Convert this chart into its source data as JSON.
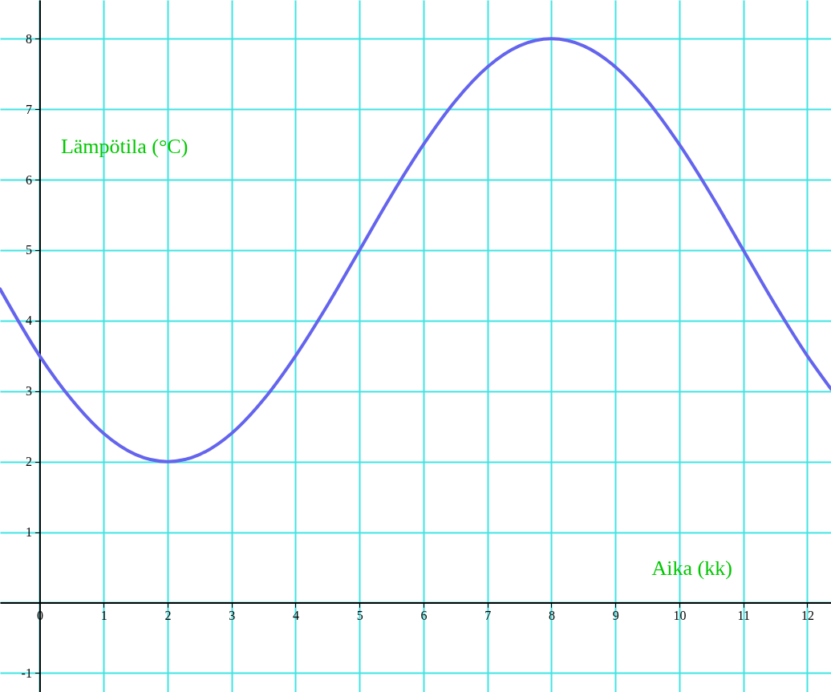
{
  "chart_data": {
    "type": "line",
    "xlabel": "Aika  (kk)",
    "ylabel": "Lämpötila  (°C)",
    "x": [
      -0.62,
      0,
      0.5,
      1,
      1.5,
      2,
      2.5,
      3,
      3.5,
      4,
      4.5,
      5,
      5.5,
      6,
      6.5,
      7,
      7.5,
      8,
      8.5,
      9,
      9.5,
      10,
      10.5,
      11,
      11.5,
      12,
      12.37
    ],
    "series": [
      {
        "color": "#6464ee",
        "values": [
          4.45,
          3.5,
          2.88,
          2.4,
          2.1,
          2.0,
          2.1,
          2.4,
          2.88,
          3.5,
          4.22,
          5.0,
          5.78,
          6.5,
          7.12,
          7.6,
          7.9,
          8.0,
          7.9,
          7.6,
          7.12,
          6.5,
          5.78,
          5.0,
          4.22,
          3.5,
          3.03
        ]
      }
    ],
    "xlim": [
      -0.62,
      12.37
    ],
    "ylim": [
      -1.27,
      8.55
    ],
    "xticks": [
      0,
      1,
      2,
      3,
      4,
      5,
      6,
      7,
      8,
      9,
      10,
      11,
      12
    ],
    "yticks": [
      -1,
      {
        "value": 0,
        "label": null
      },
      1,
      2,
      3,
      4,
      5,
      6,
      7,
      8
    ],
    "grid": true,
    "marker": "none",
    "line_style": "solid"
  }
}
